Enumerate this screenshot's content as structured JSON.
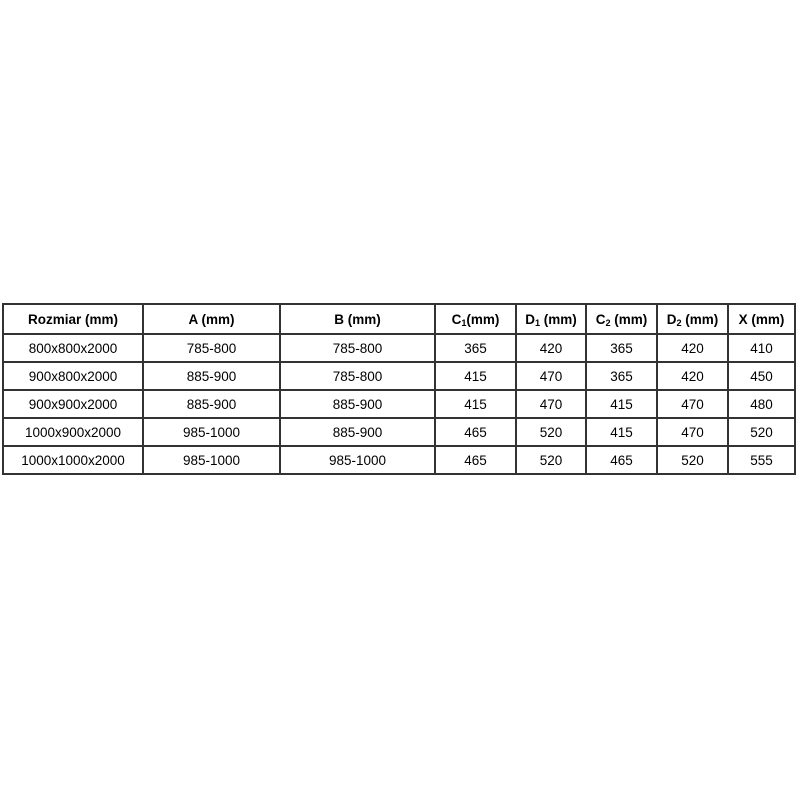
{
  "table": {
    "border_color": "#333333",
    "text_color": "#000000",
    "background": "#ffffff",
    "columns": [
      {
        "base": "Rozmiar",
        "sub": "",
        "rest": " (mm)"
      },
      {
        "base": "A",
        "sub": "",
        "rest": " (mm)"
      },
      {
        "base": "B",
        "sub": "",
        "rest": " (mm)"
      },
      {
        "base": "C",
        "sub": "1",
        "rest": "(mm)"
      },
      {
        "base": "D",
        "sub": "1",
        "rest": " (mm)"
      },
      {
        "base": "C",
        "sub": "2",
        "rest": " (mm)"
      },
      {
        "base": "D",
        "sub": "2",
        "rest": " (mm)"
      },
      {
        "base": "X",
        "sub": "",
        "rest": " (mm)"
      }
    ],
    "rows": [
      [
        "800x800x2000",
        "785-800",
        "785-800",
        "365",
        "420",
        "365",
        "420",
        "410"
      ],
      [
        "900x800x2000",
        "885-900",
        "785-800",
        "415",
        "470",
        "365",
        "420",
        "450"
      ],
      [
        "900x900x2000",
        "885-900",
        "885-900",
        "415",
        "470",
        "415",
        "470",
        "480"
      ],
      [
        "1000x900x2000",
        "985-1000",
        "885-900",
        "465",
        "520",
        "415",
        "470",
        "520"
      ],
      [
        "1000x1000x2000",
        "985-1000",
        "985-1000",
        "465",
        "520",
        "465",
        "520",
        "555"
      ]
    ]
  },
  "chart_data": {
    "type": "table",
    "title": "",
    "columns": [
      "Rozmiar (mm)",
      "A (mm)",
      "B (mm)",
      "C1(mm)",
      "D1 (mm)",
      "C2 (mm)",
      "D2 (mm)",
      "X (mm)"
    ],
    "rows": [
      [
        "800x800x2000",
        "785-800",
        "785-800",
        365,
        420,
        365,
        420,
        410
      ],
      [
        "900x800x2000",
        "885-900",
        "785-800",
        415,
        470,
        365,
        420,
        450
      ],
      [
        "900x900x2000",
        "885-900",
        "885-900",
        415,
        470,
        415,
        470,
        480
      ],
      [
        "1000x900x2000",
        "985-1000",
        "885-900",
        465,
        520,
        415,
        470,
        520
      ],
      [
        "1000x1000x2000",
        "985-1000",
        "985-1000",
        465,
        520,
        465,
        520,
        555
      ]
    ]
  }
}
